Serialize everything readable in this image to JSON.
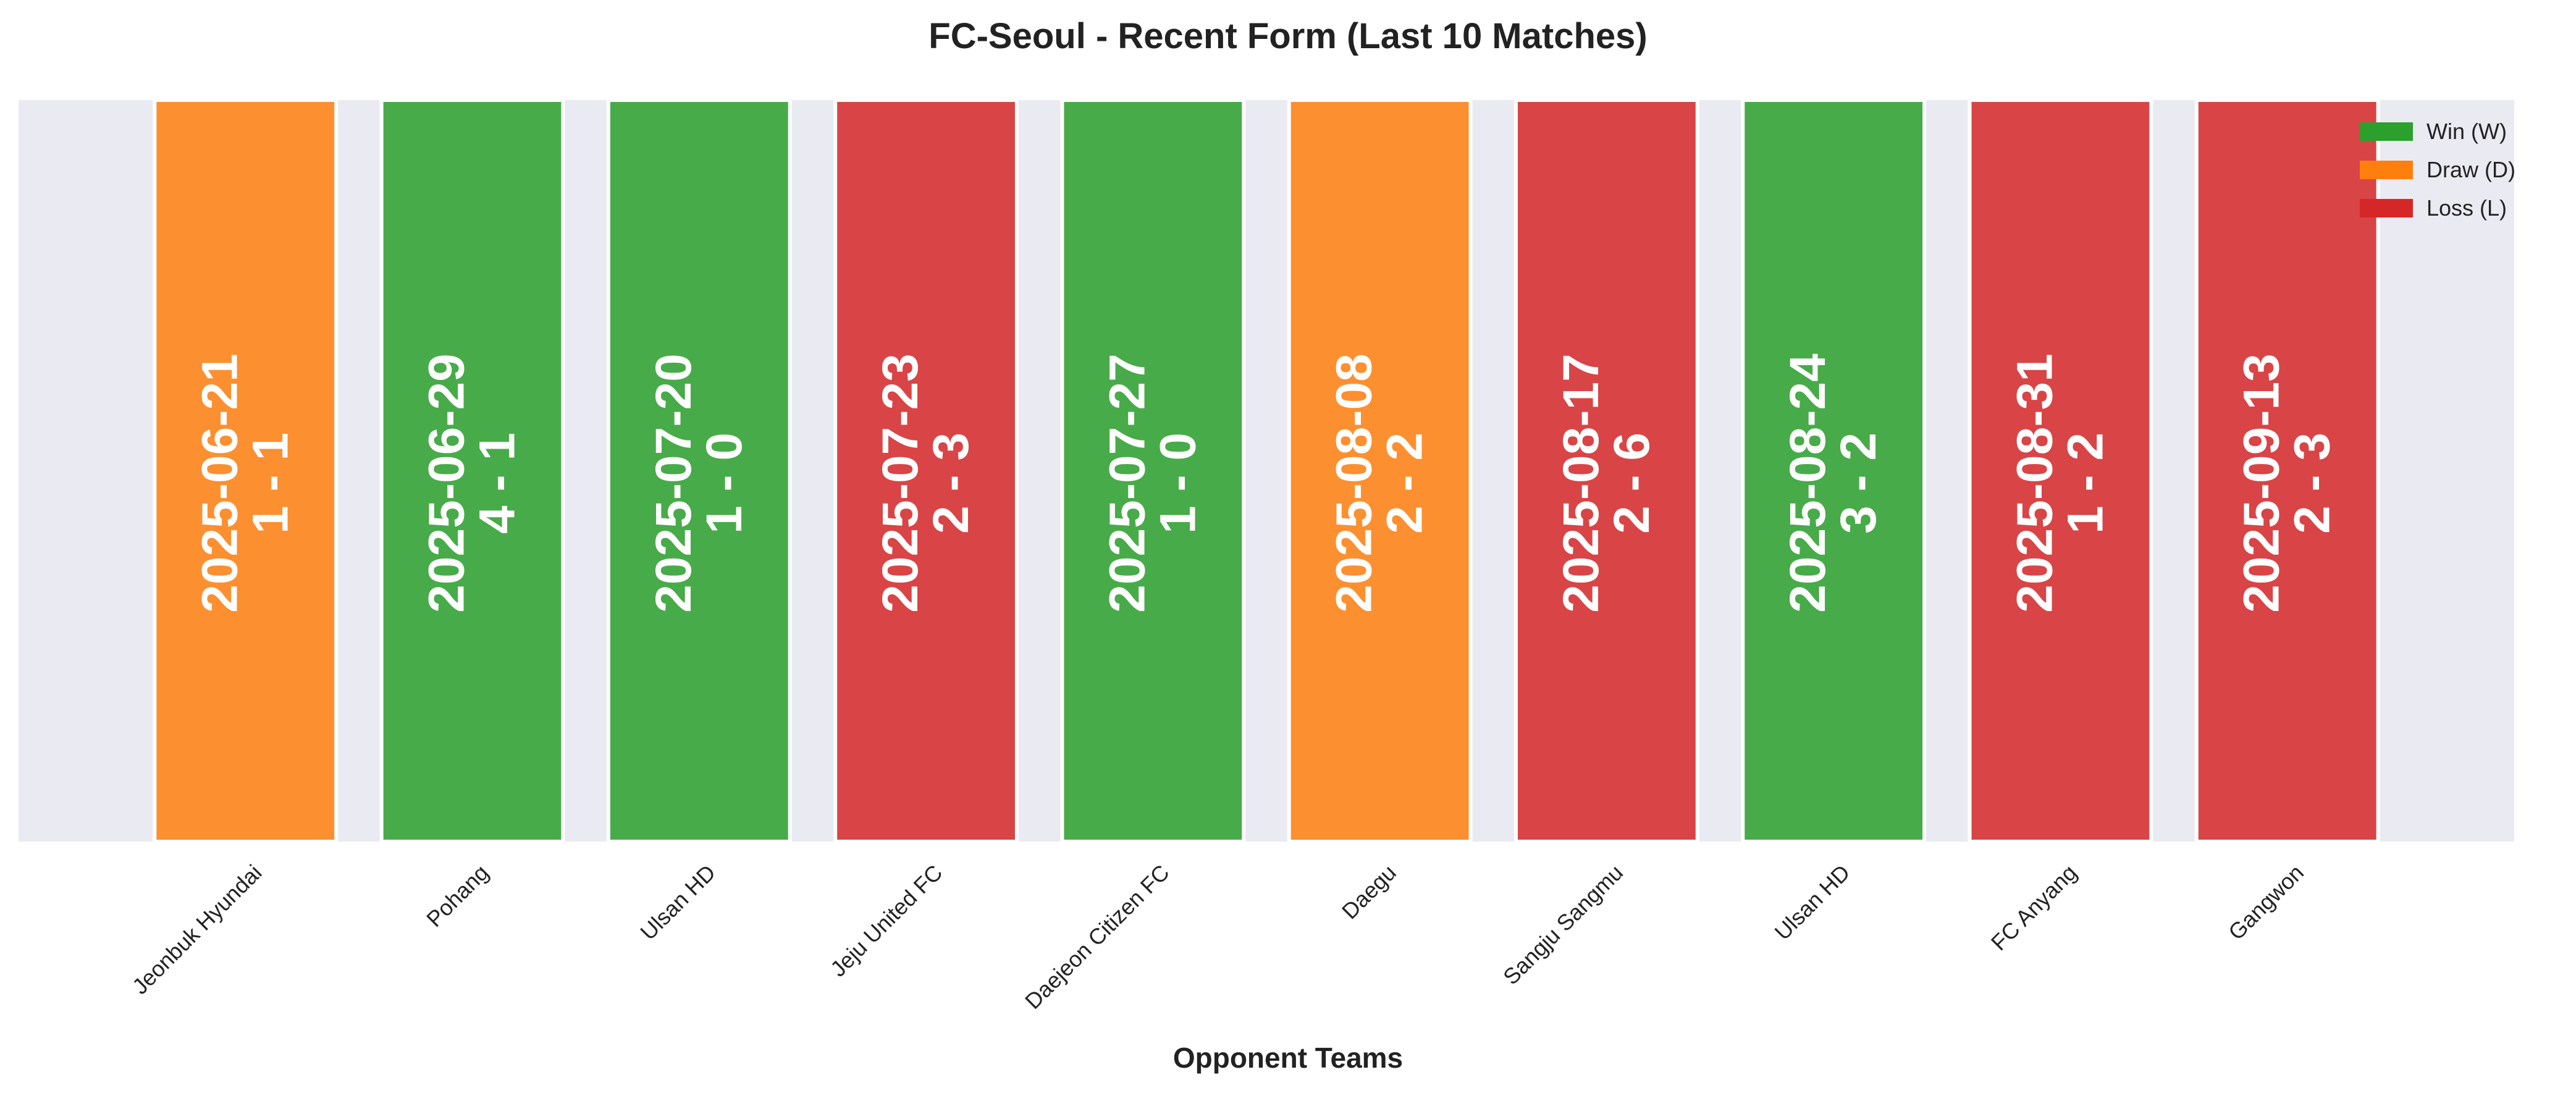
{
  "chart_data": {
    "type": "bar",
    "title": "FC-Seoul - Recent Form (Last 10 Matches)",
    "xlabel": "Opponent Teams",
    "ylabel": "",
    "categories": [
      "Jeonbuk Hyundai",
      "Pohang",
      "Ulsan HD",
      "Jeju United FC",
      "Daejeon Citizen FC",
      "Daegu",
      "Sangju Sangmu",
      "Ulsan HD",
      "FC Anyang",
      "Gangwon"
    ],
    "dates": [
      "2025-06-21",
      "2025-06-29",
      "2025-07-20",
      "2025-07-23",
      "2025-07-27",
      "2025-08-08",
      "2025-08-17",
      "2025-08-24",
      "2025-08-31",
      "2025-09-13"
    ],
    "scores": [
      "1 - 1",
      "4 - 1",
      "1 - 0",
      "2 - 3",
      "1 - 0",
      "2 - 2",
      "2 - 6",
      "3 - 2",
      "1 - 2",
      "2 - 3"
    ],
    "results": [
      "D",
      "W",
      "W",
      "L",
      "W",
      "D",
      "L",
      "W",
      "L",
      "L"
    ],
    "values": [
      1,
      1,
      1,
      1,
      1,
      1,
      1,
      1,
      1,
      1
    ],
    "ylim": [
      0,
      1
    ],
    "grid": true,
    "legend": {
      "placement": "top-right",
      "entries": [
        {
          "key": "W",
          "label": "Win (W)",
          "color": "#2ca02c"
        },
        {
          "key": "D",
          "label": "Draw (D)",
          "color": "#ff7f0e"
        },
        {
          "key": "L",
          "label": "Loss (L)",
          "color": "#d62728"
        }
      ]
    },
    "colors": {
      "plot_background": "#eaeaf2",
      "bar_edge": "#ffffff"
    }
  }
}
